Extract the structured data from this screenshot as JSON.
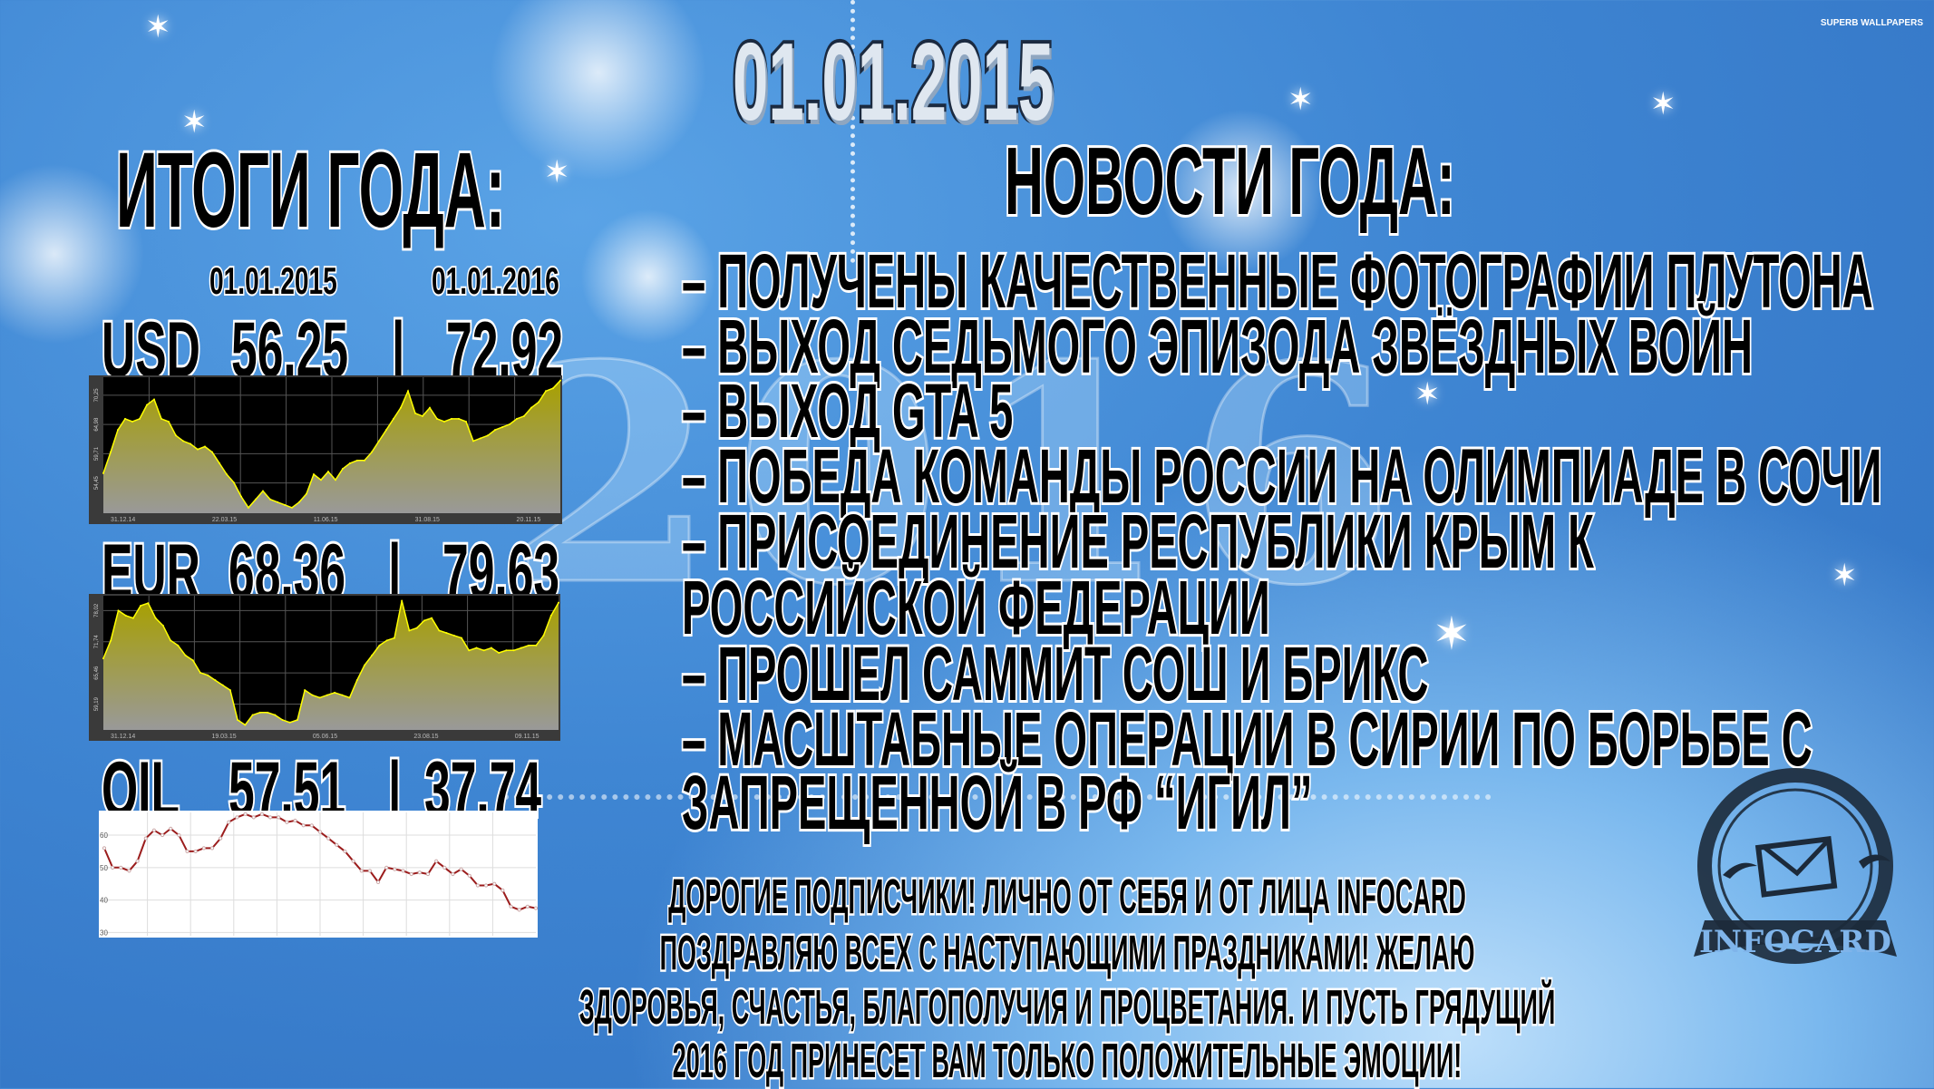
{
  "title_date": "01.01.2015",
  "left": {
    "heading": "ИТОГИ ГОДА:",
    "col_dates": [
      "01.01.2015",
      "01.01.2016"
    ],
    "rows": [
      {
        "label": "USD",
        "start": "56.25",
        "sep": "|",
        "end": "72.92"
      },
      {
        "label": "EUR",
        "start": "68.36",
        "sep": "|",
        "end": "79.63"
      },
      {
        "label": "OIL",
        "start": "57.51",
        "sep": "|",
        "end": "37.74"
      }
    ]
  },
  "news": {
    "heading": "НОВОСТИ ГОДА:",
    "lines": [
      "–  ПОЛУЧЕНЫ КАЧЕСТВЕННЫЕ ФОТОГРАФИИ ПЛУТОНА",
      "–  ВЫХОД СЕДЬМОГО ЭПИЗОДА ЗВЁЗДНЫХ ВОЙН",
      "–  ВЫХОД GTA 5",
      "– ПОБЕДА КОМАНДЫ РОССИИ НА ОЛИМПИАДЕ В СОЧИ",
      "–  ПРИСОЕДИНЕНИЕ РЕСПУБЛИКИ КРЫМ К",
      "РОССИЙСКОЙ ФЕДЕРАЦИИ",
      "–  ПРОШЕЛ САММИТ СОШ И БРИКС",
      "–  МАСШТАБНЫЕ ОПЕРАЦИИ В СИРИИ ПО БОРЬБЕ С",
      "ЗАПРЕЩЕННОЙ В РФ “ИГИЛ”"
    ]
  },
  "message": [
    "ДОРОГИЕ ПОДПИСЧИКИ! ЛИЧНО ОТ СЕБЯ И ОТ ЛИЦА INFOCARD",
    "ПОЗДРАВЛЯЮ ВСЕХ С НАСТУПАЮЩИМИ ПРАЗДНИКАМИ! ЖЕЛАЮ",
    "ЗДОРОВЬЯ, СЧАСТЬЯ, БЛАГОПОЛУЧИЯ И ПРОЦВЕТАНИЯ. И ПУСТЬ ГРЯДУЩИЙ",
    "2016 ГОД ПРИНЕСЕТ ВАМ ТОЛЬКО ПОЛОЖИТЕЛЬНЫЕ ЭМОЦИИ!"
  ],
  "logo": {
    "text": "INFOCARD",
    "icon": "envelope-icon",
    "color": "#1c2a3a"
  },
  "background_text": "2016",
  "watermark": "SUPERB WALLPAPERS",
  "chart_data": [
    {
      "type": "area",
      "name": "USD",
      "ylim": [
        49,
        73.5
      ],
      "yticks": [
        "70,25",
        "64,98",
        "59,71",
        "54,45"
      ],
      "ytick_values": [
        70.25,
        64.98,
        59.71,
        54.45
      ],
      "xticks": [
        "31.12.14",
        "22.03.15",
        "11.06.15",
        "31.08.15",
        "20.11.15"
      ],
      "line_color": "#ffff00",
      "fill_color": "#a8a000",
      "background": "#000000",
      "values": [
        56.2,
        60,
        64,
        66,
        65.5,
        66,
        68.5,
        69.5,
        66,
        65.5,
        63,
        62,
        61.5,
        60.5,
        61,
        60,
        58,
        56,
        54.5,
        52,
        50,
        51.5,
        53,
        51.5,
        51,
        50.5,
        50,
        51,
        52.5,
        56,
        55,
        56.5,
        55,
        57,
        58,
        58.5,
        58.5,
        60,
        62,
        64,
        66,
        68,
        71,
        67,
        66.5,
        68,
        66,
        65.5,
        66,
        66,
        65.5,
        62,
        62.5,
        63,
        64,
        64.5,
        65,
        66,
        66.5,
        68,
        69,
        71,
        71.5,
        72.9
      ]
    },
    {
      "type": "area",
      "name": "EUR",
      "ylim": [
        54,
        81
      ],
      "yticks": [
        "78,02",
        "71,74",
        "65,46",
        "59,19"
      ],
      "ytick_values": [
        78.02,
        71.74,
        65.46,
        59.19
      ],
      "xticks": [
        "31.12.14",
        "19.03.15",
        "05.06.15",
        "23.08.15",
        "09.11.15"
      ],
      "line_color": "#ffff00",
      "fill_color": "#a8a000",
      "background": "#000000",
      "values": [
        68.4,
        72,
        78,
        77,
        76.5,
        79,
        79.5,
        76.5,
        75,
        72,
        71,
        69,
        68,
        65.5,
        65,
        64,
        63,
        62,
        56,
        55,
        57,
        57.5,
        57.5,
        57,
        56,
        55.5,
        56,
        62,
        61,
        60.5,
        61,
        61.5,
        61,
        60.5,
        64,
        67,
        69,
        71,
        72,
        72.5,
        80,
        74,
        74.5,
        76,
        76.5,
        74,
        73.5,
        73,
        72.5,
        70,
        70.5,
        70,
        70.5,
        69.5,
        70,
        70,
        70.5,
        71,
        71,
        73,
        77,
        79.6
      ]
    },
    {
      "type": "line",
      "name": "OIL",
      "ylim": [
        29,
        67
      ],
      "yticks": [
        "60",
        "50",
        "40",
        "30"
      ],
      "ytick_values": [
        60,
        50,
        40,
        30
      ],
      "line_color": "#9b1c1c",
      "background": "#ffffff",
      "values": [
        56,
        50,
        50,
        49,
        52,
        59,
        61.5,
        60,
        62,
        60,
        55,
        55,
        56,
        56,
        59,
        64,
        65.5,
        66.5,
        65.5,
        66.5,
        65.5,
        65.5,
        64,
        64.5,
        63,
        63,
        61,
        59,
        57,
        55,
        52,
        49,
        49,
        45.5,
        50,
        49.5,
        49,
        48,
        48.5,
        48,
        52,
        50,
        48,
        49.5,
        47.5,
        44.5,
        44.5,
        45,
        43,
        38,
        37,
        38,
        37.5
      ]
    }
  ]
}
